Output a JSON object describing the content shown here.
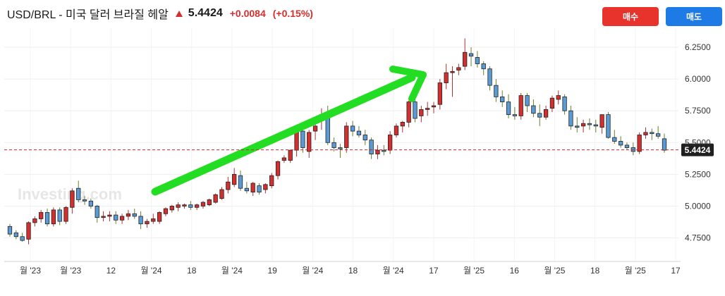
{
  "header": {
    "title": "USD/BRL - 미국 달러 브라질 헤알",
    "price": "5.4424",
    "change": "+0.0084",
    "change_pct": "(+0.15%)",
    "change_direction": "up"
  },
  "buttons": {
    "buy_label": "매수",
    "sell_label": "매도"
  },
  "watermark": "Investing.com",
  "colors": {
    "up": "#d32f2f",
    "down": "#5b9bd5",
    "trend_arrow": "#22dd22",
    "current_line": "#c62828"
  },
  "chart_data": {
    "type": "candlestick",
    "title": "",
    "xlabel": "",
    "ylabel": "",
    "ylim": [
      4.57,
      6.4
    ],
    "y_ticks": [
      "6.2500",
      "6.0000",
      "5.7500",
      "5.5000",
      "5.2500",
      "5.0000",
      "4.7500"
    ],
    "x_ticks": [
      "월 '23",
      "월 '23",
      "12",
      "월 '24",
      "18",
      "월 '24",
      "19",
      "월 '24",
      "18",
      "월 '24",
      "17",
      "월 '25",
      "16",
      "월 '25",
      "18",
      "월 '25",
      "17"
    ],
    "grid": true,
    "current_price": 5.4424,
    "current_price_label": "5.4424",
    "annotation": "green trend arrow (up)",
    "candles": [
      [
        4.84,
        4.86,
        4.76,
        4.78
      ],
      [
        4.79,
        4.81,
        4.74,
        4.76
      ],
      [
        4.76,
        4.79,
        4.72,
        4.73
      ],
      [
        4.74,
        4.88,
        4.7,
        4.87
      ],
      [
        4.87,
        4.92,
        4.84,
        4.9
      ],
      [
        4.9,
        4.97,
        4.87,
        4.95
      ],
      [
        4.95,
        4.98,
        4.84,
        4.86
      ],
      [
        4.86,
        4.99,
        4.84,
        4.97
      ],
      [
        4.97,
        4.99,
        4.85,
        4.88
      ],
      [
        4.88,
        5.0,
        4.86,
        4.99
      ],
      [
        4.99,
        5.14,
        4.94,
        5.12
      ],
      [
        5.14,
        5.2,
        5.03,
        5.05
      ],
      [
        5.05,
        5.08,
        5.01,
        5.04
      ],
      [
        5.04,
        5.06,
        4.98,
        5.0
      ],
      [
        5.0,
        5.01,
        4.87,
        4.91
      ],
      [
        4.91,
        4.96,
        4.88,
        4.92
      ],
      [
        4.92,
        4.96,
        4.88,
        4.93
      ],
      [
        4.93,
        4.96,
        4.86,
        4.89
      ],
      [
        4.89,
        4.94,
        4.86,
        4.92
      ],
      [
        4.92,
        4.97,
        4.89,
        4.94
      ],
      [
        4.94,
        4.98,
        4.9,
        4.92
      ],
      [
        4.92,
        4.96,
        4.82,
        4.86
      ],
      [
        4.86,
        4.9,
        4.83,
        4.88
      ],
      [
        4.88,
        4.94,
        4.86,
        4.9
      ],
      [
        4.88,
        4.96,
        4.86,
        4.95
      ],
      [
        4.94,
        4.99,
        4.92,
        4.98
      ],
      [
        4.97,
        5.01,
        4.95,
        5.0
      ],
      [
        4.99,
        5.03,
        4.96,
        5.01
      ],
      [
        5.0,
        5.02,
        4.98,
        5.01
      ],
      [
        5.01,
        5.04,
        4.97,
        4.99
      ],
      [
        4.99,
        5.02,
        4.97,
        5.01
      ],
      [
        5.0,
        5.04,
        4.98,
        5.03
      ],
      [
        5.01,
        5.06,
        5.0,
        5.05
      ],
      [
        5.03,
        5.1,
        5.02,
        5.09
      ],
      [
        5.06,
        5.15,
        5.05,
        5.13
      ],
      [
        5.13,
        5.23,
        5.1,
        5.19
      ],
      [
        5.17,
        5.3,
        5.15,
        5.25
      ],
      [
        5.24,
        5.28,
        5.12,
        5.14
      ],
      [
        5.14,
        5.19,
        5.1,
        5.12
      ],
      [
        5.11,
        5.19,
        5.08,
        5.18
      ],
      [
        5.16,
        5.18,
        5.09,
        5.11
      ],
      [
        5.13,
        5.18,
        5.1,
        5.17
      ],
      [
        5.16,
        5.26,
        5.14,
        5.24
      ],
      [
        5.24,
        5.36,
        5.21,
        5.35
      ],
      [
        5.36,
        5.4,
        5.34,
        5.38
      ],
      [
        5.36,
        5.44,
        5.34,
        5.44
      ],
      [
        5.44,
        5.62,
        5.39,
        5.59
      ],
      [
        5.59,
        5.66,
        5.42,
        5.46
      ],
      [
        5.43,
        5.6,
        5.38,
        5.58
      ],
      [
        5.59,
        5.7,
        5.52,
        5.63
      ],
      [
        5.68,
        5.77,
        5.6,
        5.72
      ],
      [
        5.72,
        5.79,
        5.48,
        5.5
      ],
      [
        5.5,
        5.54,
        5.43,
        5.46
      ],
      [
        5.46,
        5.49,
        5.38,
        5.45
      ],
      [
        5.46,
        5.66,
        5.42,
        5.63
      ],
      [
        5.63,
        5.67,
        5.55,
        5.59
      ],
      [
        5.59,
        5.63,
        5.54,
        5.56
      ],
      [
        5.56,
        5.6,
        5.48,
        5.52
      ],
      [
        5.52,
        5.54,
        5.37,
        5.41
      ],
      [
        5.41,
        5.48,
        5.37,
        5.44
      ],
      [
        5.44,
        5.48,
        5.4,
        5.43
      ],
      [
        5.44,
        5.59,
        5.41,
        5.56
      ],
      [
        5.56,
        5.65,
        5.54,
        5.63
      ],
      [
        5.63,
        5.67,
        5.58,
        5.66
      ],
      [
        5.66,
        5.83,
        5.62,
        5.82
      ],
      [
        5.82,
        5.84,
        5.66,
        5.69
      ],
      [
        5.71,
        5.79,
        5.66,
        5.76
      ],
      [
        5.76,
        5.82,
        5.71,
        5.77
      ],
      [
        5.78,
        5.82,
        5.73,
        5.79
      ],
      [
        5.8,
        6.0,
        5.76,
        5.97
      ],
      [
        5.97,
        6.12,
        5.92,
        6.05
      ],
      [
        6.05,
        6.1,
        5.86,
        6.06
      ],
      [
        6.07,
        6.12,
        6.03,
        6.09
      ],
      [
        6.1,
        6.32,
        6.07,
        6.21
      ],
      [
        6.2,
        6.25,
        6.1,
        6.18
      ],
      [
        6.17,
        6.22,
        6.09,
        6.12
      ],
      [
        6.12,
        6.14,
        6.03,
        6.08
      ],
      [
        6.08,
        6.1,
        5.91,
        5.95
      ],
      [
        5.95,
        6.0,
        5.82,
        5.86
      ],
      [
        5.86,
        5.91,
        5.78,
        5.82
      ],
      [
        5.82,
        5.88,
        5.69,
        5.72
      ],
      [
        5.72,
        5.78,
        5.68,
        5.71
      ],
      [
        5.71,
        5.89,
        5.68,
        5.87
      ],
      [
        5.87,
        5.89,
        5.74,
        5.79
      ],
      [
        5.79,
        5.84,
        5.7,
        5.73
      ],
      [
        5.73,
        5.8,
        5.63,
        5.7
      ],
      [
        5.7,
        5.79,
        5.68,
        5.76
      ],
      [
        5.77,
        5.87,
        5.74,
        5.85
      ],
      [
        5.84,
        5.91,
        5.8,
        5.87
      ],
      [
        5.86,
        5.88,
        5.72,
        5.75
      ],
      [
        5.75,
        5.79,
        5.6,
        5.63
      ],
      [
        5.63,
        5.7,
        5.58,
        5.62
      ],
      [
        5.63,
        5.68,
        5.58,
        5.65
      ],
      [
        5.65,
        5.69,
        5.6,
        5.64
      ],
      [
        5.64,
        5.68,
        5.58,
        5.63
      ],
      [
        5.62,
        5.72,
        5.57,
        5.72
      ],
      [
        5.72,
        5.74,
        5.53,
        5.54
      ],
      [
        5.54,
        5.6,
        5.49,
        5.51
      ],
      [
        5.51,
        5.55,
        5.46,
        5.48
      ],
      [
        5.48,
        5.5,
        5.44,
        5.46
      ],
      [
        5.46,
        5.5,
        5.4,
        5.43
      ],
      [
        5.43,
        5.58,
        5.41,
        5.56
      ],
      [
        5.56,
        5.62,
        5.53,
        5.58
      ],
      [
        5.58,
        5.61,
        5.52,
        5.57
      ],
      [
        5.57,
        5.63,
        5.53,
        5.55
      ],
      [
        5.53,
        5.57,
        5.42,
        5.44
      ]
    ]
  }
}
